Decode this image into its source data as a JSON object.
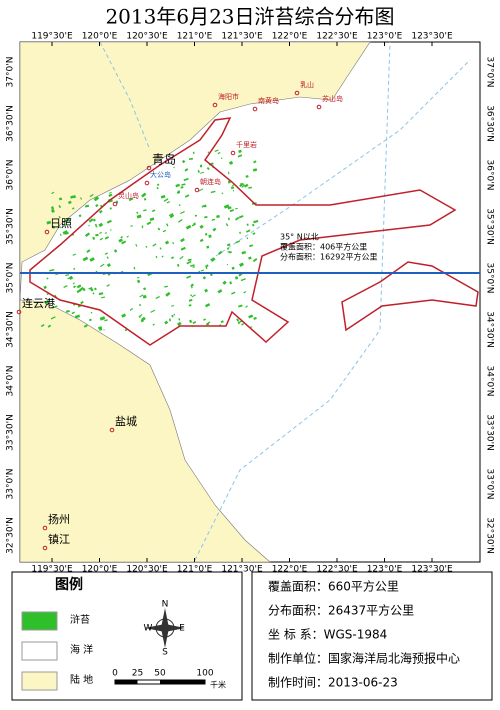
{
  "title": "2013年6月23日浒苔综合分布图",
  "map": {
    "lon_labels": [
      "119°30'E",
      "120°0'E",
      "120°30'E",
      "121°0'E",
      "121°30'E",
      "122°0'E",
      "122°30'E",
      "123°0'E",
      "123°30'E"
    ],
    "lat_labels": [
      "37°0'N",
      "36°30'N",
      "36°0'N",
      "35°30'N",
      "35°0'N",
      "34°30'N",
      "34°0'N",
      "33°30'N",
      "33°0'N",
      "32°30'N"
    ],
    "places": [
      "青岛",
      "日照",
      "连云港",
      "盐城",
      "扬州",
      "镇江",
      "海阳市",
      "南黄岛",
      "乳山",
      "苏山岛",
      "千里岩",
      "大公岛",
      "朝连岛",
      "灵山岛"
    ],
    "annotation": [
      "35° N以北",
      "覆盖面积：406平方公里",
      "分布面积：16292平方公里"
    ]
  },
  "legend": {
    "title": "图例",
    "items": [
      "浒苔",
      "海 洋",
      "陆 地"
    ]
  },
  "compass": [
    "N",
    "W",
    "E",
    "S"
  ],
  "scale_bar": {
    "ticks": [
      0,
      25,
      50,
      100
    ],
    "unit": "千米"
  },
  "info": [
    "覆盖面积：660平方公里",
    "分布面积：26437平方公里",
    "坐 标 系：WGS-1984",
    "制作单位：国家海洋局北海预报中心",
    "制作时间：2013-06-23"
  ]
}
